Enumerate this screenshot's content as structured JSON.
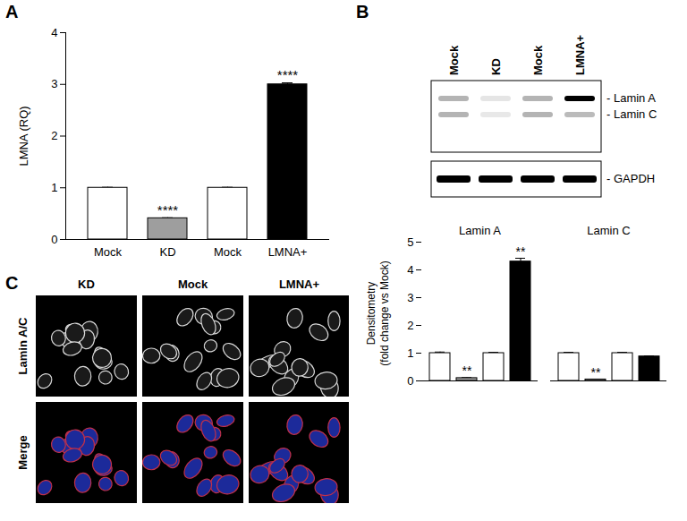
{
  "panel_labels": [
    "A",
    "B",
    "C"
  ],
  "chart_data": [
    {
      "type": "bar",
      "y_label": "LMNA (RQ)",
      "categories": [
        "Mock",
        "KD",
        "Mock",
        "LMNA+"
      ],
      "values": [
        1,
        0.41,
        1,
        3.0
      ],
      "errors": [
        0.01,
        0.01,
        0.01,
        0.03
      ],
      "significance": [
        null,
        "****",
        null,
        "****"
      ],
      "colors": [
        "#ffffff",
        "#9e9e9e",
        "#ffffff",
        "#000000"
      ],
      "ylim": [
        0,
        4
      ],
      "yticks": [
        0,
        1,
        2,
        3,
        4
      ]
    },
    {
      "type": "bar",
      "y_label": "Densitometry\n(fold change vs Mock)",
      "categories": [
        "Lamin A",
        "Lamin C"
      ],
      "series": [
        {
          "color": "#ffffff",
          "values": [
            1,
            1
          ],
          "errors": [
            0.04,
            0.03
          ],
          "significance": [
            null,
            null
          ]
        },
        {
          "color": "#9e9e9e",
          "values": [
            0.1,
            0.05
          ],
          "errors": [
            0.02,
            0.01
          ],
          "significance": [
            "**",
            "**"
          ]
        },
        {
          "color": "#ffffff",
          "values": [
            1,
            1
          ],
          "errors": [
            0.03,
            0.03
          ],
          "significance": [
            null,
            null
          ]
        },
        {
          "color": "#000000",
          "values": [
            4.3,
            0.88
          ],
          "errors": [
            0.12,
            0.02
          ],
          "significance": [
            "**",
            null
          ]
        }
      ],
      "ylim": [
        0,
        5
      ],
      "yticks": [
        0,
        1,
        2,
        3,
        4,
        5
      ]
    }
  ],
  "blot": {
    "lanes": [
      "Mock",
      "KD",
      "Mock",
      "LMNA+"
    ],
    "bands": [
      "- Lamin A",
      "- Lamin C"
    ],
    "loading_control": "- GAPDH"
  },
  "microscopy": {
    "columns": [
      "KD",
      "Mock",
      "LMNA+"
    ],
    "rows": [
      "Lamin A/C",
      "Merge"
    ]
  }
}
